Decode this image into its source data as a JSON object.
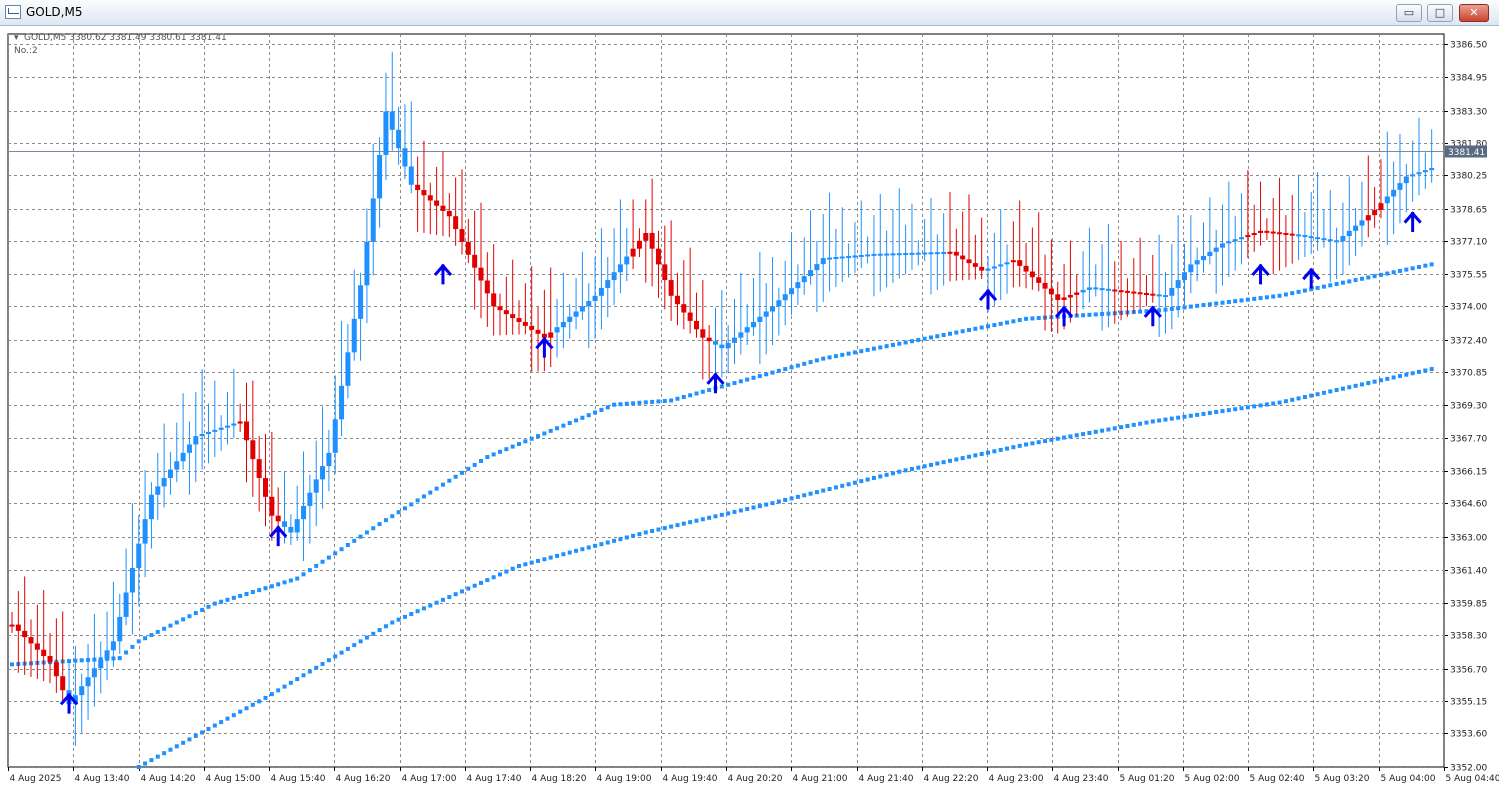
{
  "window": {
    "title": "GOLD,M5",
    "minimize_symbol": "▭",
    "maximize_symbol": "□",
    "close_symbol": "✕"
  },
  "chart_header": {
    "symbol_line": "GOLD,M5  3380.62 3381.49 3380.61 3381.41",
    "indicator_line": "No.:2",
    "collapse_symbol": "▾"
  },
  "colors": {
    "bull": "#1e90ff",
    "bear": "#e00000",
    "band": "#1e90ff",
    "arrow": "#0000ee",
    "grid": "#8a8a8a"
  },
  "chart_data": {
    "type": "candlestick",
    "symbol": "GOLD",
    "timeframe": "M5",
    "current_price_label": "3381.41",
    "current_price": 3381.41,
    "ylim": [
      3352.0,
      3387.0
    ],
    "y_ticks": [
      "3386.50",
      "3384.95",
      "3383.30",
      "3381.80",
      "3380.25",
      "3378.65",
      "3377.10",
      "3375.55",
      "3374.00",
      "3372.40",
      "3370.85",
      "3369.30",
      "3367.70",
      "3366.15",
      "3364.60",
      "3363.00",
      "3361.40",
      "3359.85",
      "3358.30",
      "3356.70",
      "3355.15",
      "3353.60",
      "3352.00"
    ],
    "x_ticks": [
      "4 Aug 2025",
      "4 Aug 13:40",
      "4 Aug 14:20",
      "4 Aug 15:00",
      "4 Aug 15:40",
      "4 Aug 16:20",
      "4 Aug 17:00",
      "4 Aug 17:40",
      "4 Aug 18:20",
      "4 Aug 19:00",
      "4 Aug 19:40",
      "4 Aug 20:20",
      "4 Aug 21:00",
      "4 Aug 21:40",
      "4 Aug 22:20",
      "4 Aug 23:00",
      "4 Aug 23:40",
      "5 Aug 01:20",
      "5 Aug 02:00",
      "5 Aug 02:40",
      "5 Aug 03:20",
      "5 Aug 04:00",
      "5 Aug 04:40"
    ],
    "price_path": [
      [
        0,
        3358.8
      ],
      [
        6,
        3357.0
      ],
      [
        9,
        3355.0
      ],
      [
        16,
        3358.0
      ],
      [
        22,
        3365.0
      ],
      [
        29,
        3367.8
      ],
      [
        36,
        3368.5
      ],
      [
        41,
        3364.0
      ],
      [
        44,
        3363.2
      ],
      [
        50,
        3367.0
      ],
      [
        55,
        3375.0
      ],
      [
        59,
        3383.3
      ],
      [
        63,
        3379.8
      ],
      [
        69,
        3378.3
      ],
      [
        76,
        3374.0
      ],
      [
        84,
        3372.5
      ],
      [
        92,
        3374.5
      ],
      [
        100,
        3377.5
      ],
      [
        104,
        3374.5
      ],
      [
        109,
        3372.5
      ],
      [
        112,
        3372.0
      ],
      [
        120,
        3374.0
      ],
      [
        128,
        3376.3
      ],
      [
        136,
        3376.5
      ],
      [
        148,
        3376.6
      ],
      [
        153,
        3375.7
      ],
      [
        158,
        3376.2
      ],
      [
        165,
        3374.3
      ],
      [
        170,
        3374.9
      ],
      [
        176,
        3374.7
      ],
      [
        182,
        3374.5
      ],
      [
        186,
        3376.0
      ],
      [
        191,
        3377.0
      ],
      [
        197,
        3377.6
      ],
      [
        203,
        3377.4
      ],
      [
        209,
        3377.1
      ],
      [
        215,
        3378.6
      ],
      [
        220,
        3380.2
      ],
      [
        224,
        3380.6
      ]
    ],
    "bearish_segments": [
      [
        0,
        8
      ],
      [
        36,
        42
      ],
      [
        64,
        85
      ],
      [
        98,
        110
      ],
      [
        148,
        153
      ],
      [
        158,
        168
      ],
      [
        174,
        180
      ],
      [
        195,
        202
      ],
      [
        214,
        216
      ]
    ],
    "bands": [
      {
        "values": [
          [
            0,
            3356.9
          ],
          [
            17,
            3357.2
          ],
          [
            20,
            3358.0
          ],
          [
            32,
            3359.8
          ],
          [
            45,
            3361.0
          ],
          [
            58,
            3363.6
          ],
          [
            75,
            3366.8
          ],
          [
            95,
            3369.3
          ],
          [
            104,
            3369.5
          ],
          [
            128,
            3371.5
          ],
          [
            160,
            3373.4
          ],
          [
            181,
            3373.8
          ],
          [
            200,
            3374.5
          ],
          [
            224,
            3376.0
          ]
        ]
      },
      {
        "values": [
          [
            20,
            3352.0
          ],
          [
            40,
            3355.3
          ],
          [
            60,
            3358.9
          ],
          [
            80,
            3361.6
          ],
          [
            100,
            3363.2
          ],
          [
            120,
            3364.6
          ],
          [
            140,
            3366.1
          ],
          [
            160,
            3367.4
          ],
          [
            180,
            3368.5
          ],
          [
            200,
            3369.4
          ],
          [
            224,
            3371.0
          ]
        ]
      }
    ],
    "buy_signals": [
      {
        "bar": 9,
        "price": 3355.0
      },
      {
        "bar": 42,
        "price": 3363.0
      },
      {
        "bar": 68,
        "price": 3375.5
      },
      {
        "bar": 84,
        "price": 3372.0
      },
      {
        "bar": 111,
        "price": 3370.3
      },
      {
        "bar": 154,
        "price": 3374.3
      },
      {
        "bar": 166,
        "price": 3373.5
      },
      {
        "bar": 180,
        "price": 3373.5
      },
      {
        "bar": 197,
        "price": 3375.5
      },
      {
        "bar": 205,
        "price": 3375.3
      },
      {
        "bar": 221,
        "price": 3378.0
      }
    ]
  }
}
